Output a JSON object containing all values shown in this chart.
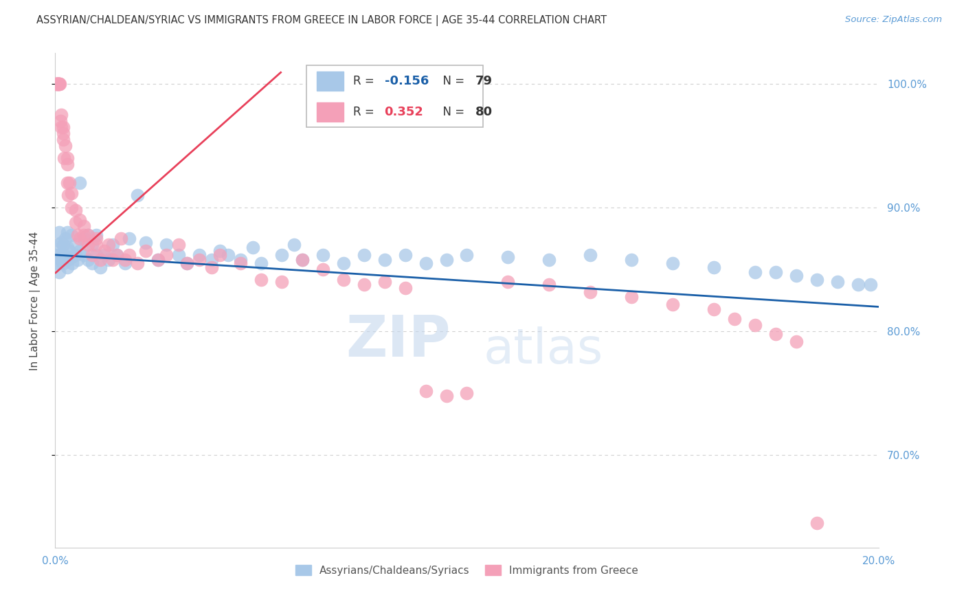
{
  "title": "ASSYRIAN/CHALDEAN/SYRIAC VS IMMIGRANTS FROM GREECE IN LABOR FORCE | AGE 35-44 CORRELATION CHART",
  "source": "Source: ZipAtlas.com",
  "ylabel": "In Labor Force | Age 35-44",
  "xlim": [
    0.0,
    0.2
  ],
  "ylim": [
    0.625,
    1.025
  ],
  "yticks": [
    0.7,
    0.8,
    0.9,
    1.0
  ],
  "ytick_labels": [
    "70.0%",
    "80.0%",
    "90.0%",
    "100.0%"
  ],
  "xticks": [
    0.0,
    0.05,
    0.1,
    0.15,
    0.2
  ],
  "xtick_labels": [
    "0.0%",
    "",
    "",
    "",
    "20.0%"
  ],
  "blue_color": "#a8c8e8",
  "pink_color": "#f4a0b8",
  "blue_line_color": "#1a5fa8",
  "pink_line_color": "#e8405a",
  "R_blue": -0.156,
  "N_blue": 79,
  "R_pink": 0.352,
  "N_pink": 80,
  "legend_label_blue": "Assyrians/Chaldeans/Syriacs",
  "legend_label_pink": "Immigrants from Greece",
  "watermark_zip": "ZIP",
  "watermark_atlas": "atlas",
  "background_color": "#ffffff",
  "grid_color": "#d0d0d0",
  "axis_color": "#5b9bd5",
  "title_fontsize": 10.5,
  "blue_x": [
    0.0003,
    0.0005,
    0.0007,
    0.0009,
    0.001,
    0.001,
    0.0012,
    0.0013,
    0.0015,
    0.0015,
    0.002,
    0.002,
    0.0022,
    0.0025,
    0.003,
    0.003,
    0.003,
    0.0032,
    0.0035,
    0.004,
    0.004,
    0.0042,
    0.005,
    0.005,
    0.0055,
    0.006,
    0.006,
    0.007,
    0.007,
    0.008,
    0.008,
    0.009,
    0.009,
    0.01,
    0.01,
    0.011,
    0.012,
    0.013,
    0.014,
    0.015,
    0.017,
    0.018,
    0.02,
    0.022,
    0.025,
    0.027,
    0.03,
    0.032,
    0.035,
    0.038,
    0.04,
    0.042,
    0.045,
    0.048,
    0.05,
    0.055,
    0.058,
    0.06,
    0.065,
    0.07,
    0.075,
    0.08,
    0.085,
    0.09,
    0.095,
    0.1,
    0.11,
    0.12,
    0.13,
    0.14,
    0.15,
    0.16,
    0.17,
    0.175,
    0.18,
    0.185,
    0.19,
    0.195,
    0.198
  ],
  "blue_y": [
    0.862,
    0.858,
    0.87,
    0.855,
    0.848,
    0.88,
    0.862,
    0.858,
    0.872,
    0.86,
    0.855,
    0.87,
    0.862,
    0.875,
    0.852,
    0.868,
    0.88,
    0.858,
    0.865,
    0.86,
    0.878,
    0.855,
    0.862,
    0.87,
    0.858,
    0.865,
    0.92,
    0.862,
    0.875,
    0.858,
    0.878,
    0.855,
    0.87,
    0.862,
    0.878,
    0.852,
    0.862,
    0.858,
    0.87,
    0.862,
    0.855,
    0.875,
    0.91,
    0.872,
    0.858,
    0.87,
    0.862,
    0.855,
    0.862,
    0.858,
    0.865,
    0.862,
    0.858,
    0.868,
    0.855,
    0.862,
    0.87,
    0.858,
    0.862,
    0.855,
    0.862,
    0.858,
    0.862,
    0.855,
    0.858,
    0.862,
    0.86,
    0.858,
    0.862,
    0.858,
    0.855,
    0.852,
    0.848,
    0.848,
    0.845,
    0.842,
    0.84,
    0.838,
    0.838
  ],
  "pink_x": [
    0.0002,
    0.0003,
    0.0004,
    0.0005,
    0.0005,
    0.0006,
    0.0007,
    0.0008,
    0.0009,
    0.001,
    0.001,
    0.001,
    0.0012,
    0.0013,
    0.0015,
    0.0015,
    0.002,
    0.002,
    0.002,
    0.0022,
    0.0025,
    0.003,
    0.003,
    0.003,
    0.0032,
    0.0035,
    0.004,
    0.004,
    0.005,
    0.005,
    0.0055,
    0.006,
    0.006,
    0.007,
    0.007,
    0.008,
    0.008,
    0.009,
    0.01,
    0.01,
    0.011,
    0.012,
    0.013,
    0.014,
    0.015,
    0.016,
    0.017,
    0.018,
    0.02,
    0.022,
    0.025,
    0.027,
    0.03,
    0.032,
    0.035,
    0.038,
    0.04,
    0.045,
    0.05,
    0.055,
    0.06,
    0.065,
    0.07,
    0.075,
    0.08,
    0.085,
    0.09,
    0.095,
    0.1,
    0.11,
    0.12,
    0.13,
    0.14,
    0.15,
    0.16,
    0.165,
    0.17,
    0.175,
    0.18,
    0.185
  ],
  "pink_y": [
    1.0,
    1.0,
    1.0,
    1.0,
    1.0,
    1.0,
    1.0,
    1.0,
    1.0,
    1.0,
    1.0,
    1.0,
    1.0,
    0.97,
    0.965,
    0.975,
    0.955,
    0.96,
    0.965,
    0.94,
    0.95,
    0.92,
    0.935,
    0.94,
    0.91,
    0.92,
    0.9,
    0.912,
    0.888,
    0.898,
    0.878,
    0.89,
    0.875,
    0.878,
    0.885,
    0.87,
    0.878,
    0.862,
    0.87,
    0.875,
    0.858,
    0.865,
    0.87,
    0.858,
    0.862,
    0.875,
    0.858,
    0.862,
    0.855,
    0.865,
    0.858,
    0.862,
    0.87,
    0.855,
    0.858,
    0.852,
    0.862,
    0.855,
    0.842,
    0.84,
    0.858,
    0.85,
    0.842,
    0.838,
    0.84,
    0.835,
    0.752,
    0.748,
    0.75,
    0.84,
    0.838,
    0.832,
    0.828,
    0.822,
    0.818,
    0.81,
    0.805,
    0.798,
    0.792,
    0.645
  ],
  "blue_trend_x": [
    0.0,
    0.2
  ],
  "blue_trend_y": [
    0.862,
    0.82
  ],
  "pink_trend_x": [
    0.0,
    0.055
  ],
  "pink_trend_y": [
    0.847,
    1.01
  ]
}
